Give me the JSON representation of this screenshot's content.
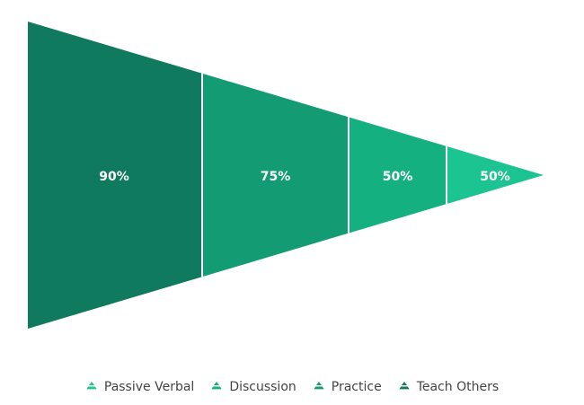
{
  "chart_data": {
    "type": "funnel",
    "title": "",
    "segments": [
      {
        "name": "Teach Others",
        "value": 90,
        "label": "90%",
        "color": "#0f7a5d"
      },
      {
        "name": "Practice",
        "value": 75,
        "label": "75%",
        "color": "#139b74"
      },
      {
        "name": "Discussion",
        "value": 50,
        "label": "50%",
        "color": "#15b080"
      },
      {
        "name": "Passive Verbal",
        "value": 50,
        "label": "50%",
        "color": "#1cc492"
      }
    ],
    "legend": {
      "placement": "bottom",
      "entries": [
        {
          "name": "Passive Verbal",
          "color": "#1cc492"
        },
        {
          "name": "Discussion",
          "color": "#15b080"
        },
        {
          "name": "Practice",
          "color": "#139b74"
        },
        {
          "name": "Teach Others",
          "color": "#0f7a5d"
        }
      ]
    }
  }
}
